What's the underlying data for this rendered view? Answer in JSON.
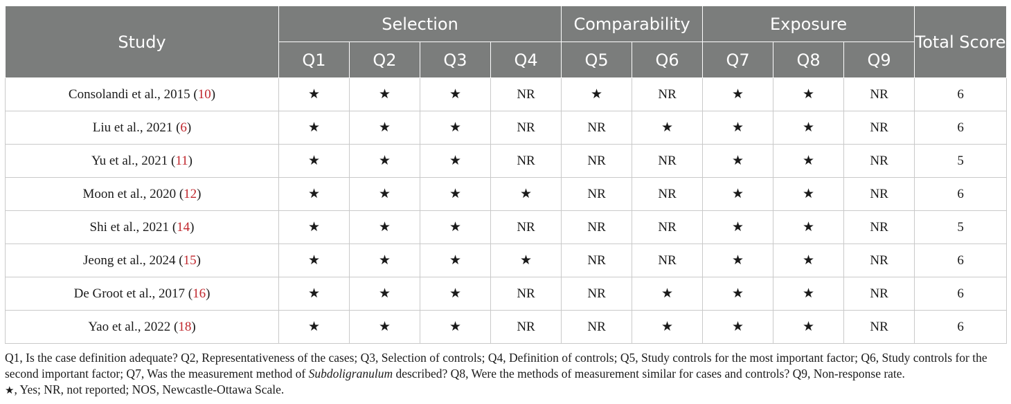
{
  "header": {
    "study": "Study",
    "groups": [
      "Selection",
      "Comparability",
      "Exposure"
    ],
    "questions": [
      "Q1",
      "Q2",
      "Q3",
      "Q4",
      "Q5",
      "Q6",
      "Q7",
      "Q8",
      "Q9"
    ],
    "total": "Total Score"
  },
  "rows": [
    {
      "study": "Consolandi et al., 2015",
      "ref": "10",
      "cells": [
        "★",
        "★",
        "★",
        "NR",
        "★",
        "NR",
        "★",
        "★",
        "NR"
      ],
      "total": "6"
    },
    {
      "study": "Liu et al., 2021",
      "ref": "6",
      "cells": [
        "★",
        "★",
        "★",
        "NR",
        "NR",
        "★",
        "★",
        "★",
        "NR"
      ],
      "total": "6"
    },
    {
      "study": "Yu et al., 2021",
      "ref": "11",
      "cells": [
        "★",
        "★",
        "★",
        "NR",
        "NR",
        "NR",
        "★",
        "★",
        "NR"
      ],
      "total": "5"
    },
    {
      "study": "Moon et al., 2020",
      "ref": "12",
      "cells": [
        "★",
        "★",
        "★",
        "★",
        "NR",
        "NR",
        "★",
        "★",
        "NR"
      ],
      "total": "6"
    },
    {
      "study": "Shi et al., 2021",
      "ref": "14",
      "cells": [
        "★",
        "★",
        "★",
        "NR",
        "NR",
        "NR",
        "★",
        "★",
        "NR"
      ],
      "total": "5"
    },
    {
      "study": "Jeong et al., 2024",
      "ref": "15",
      "cells": [
        "★",
        "★",
        "★",
        "★",
        "NR",
        "NR",
        "★",
        "★",
        "NR"
      ],
      "total": "6"
    },
    {
      "study": "De Groot et al., 2017",
      "ref": "16",
      "cells": [
        "★",
        "★",
        "★",
        "NR",
        "NR",
        "★",
        "★",
        "★",
        "NR"
      ],
      "total": "6"
    },
    {
      "study": "Yao et al., 2022",
      "ref": "18",
      "cells": [
        "★",
        "★",
        "★",
        "NR",
        "NR",
        "★",
        "★",
        "★",
        "NR"
      ],
      "total": "6"
    }
  ],
  "footnote": {
    "part1": "Q1, Is the case definition adequate? Q2, Representativeness of the cases; Q3, Selection of controls; Q4, Definition of controls; Q5, Study controls for the most important factor; Q6, Study controls for the second important factor; Q7, Was the measurement method of ",
    "italic": "Subdoligranulum",
    "part2": " described? Q8, Were the methods of measurement similar for cases and controls? Q9, Non-response rate.",
    "star": "★",
    "legend": ", Yes; NR, not reported; NOS, Newcastle-Ottawa Scale."
  }
}
